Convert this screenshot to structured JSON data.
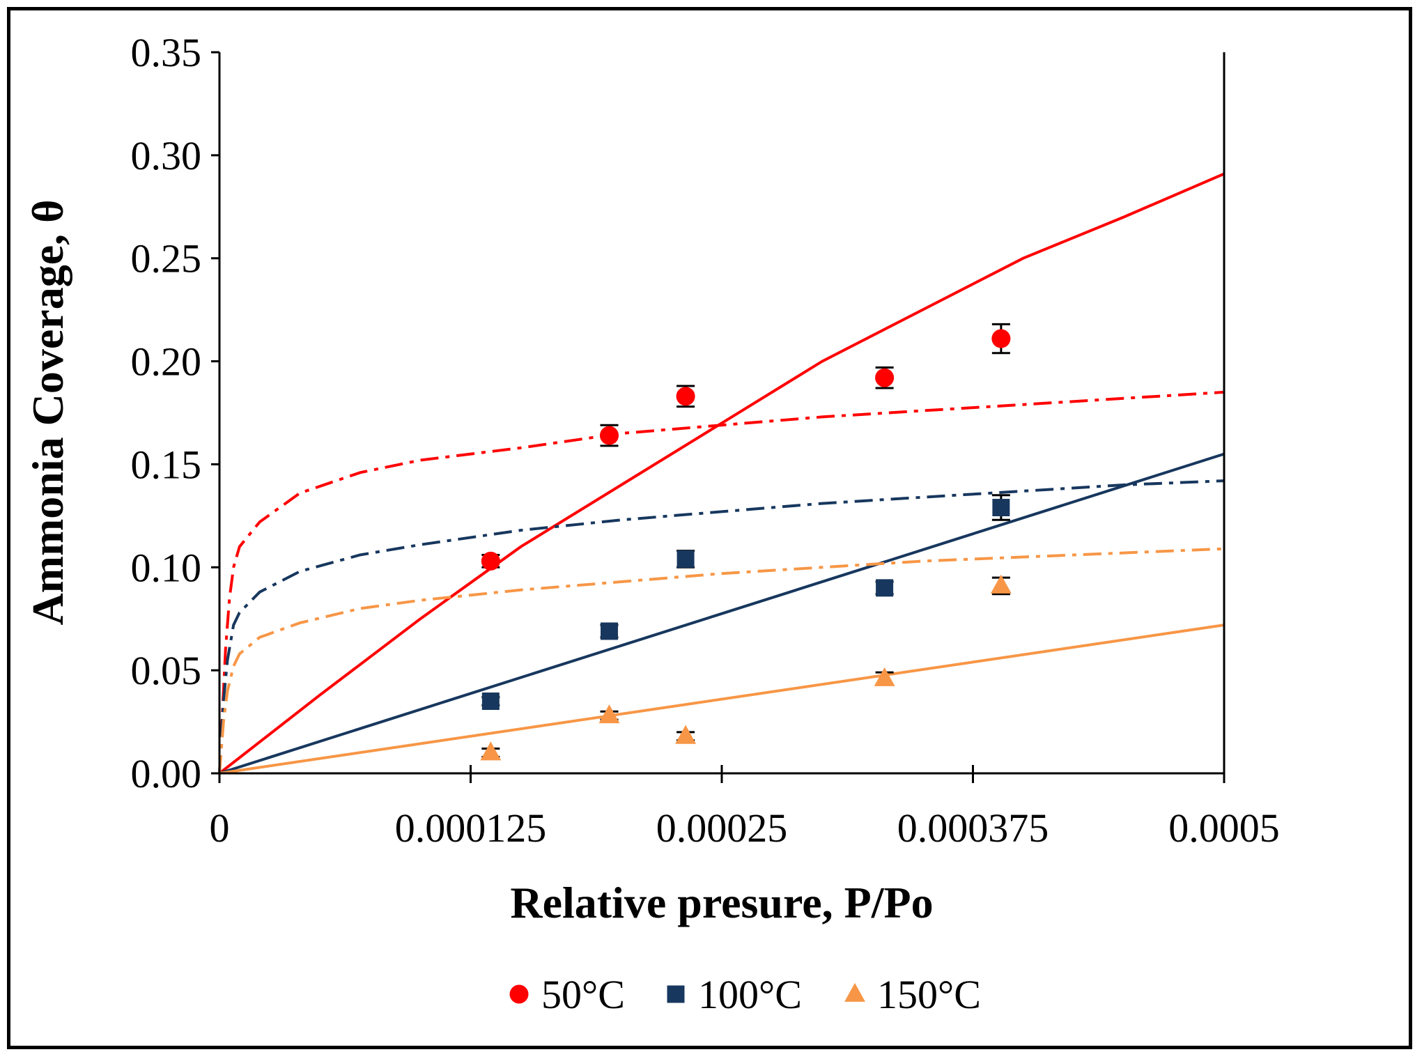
{
  "chart_data": {
    "type": "scatter",
    "xlabel": "Relative presure, P/Po",
    "ylabel": "Ammonia Coverage, θ",
    "xlim": [
      0,
      0.0005
    ],
    "ylim": [
      0,
      0.35
    ],
    "x_ticks": [
      0,
      0.000125,
      0.00025,
      0.000375,
      0.0005
    ],
    "x_tick_labels": [
      "0",
      "0.000125",
      "0.00025",
      "0.000375",
      "0.0005"
    ],
    "y_ticks": [
      0,
      0.05,
      0.1,
      0.15,
      0.2,
      0.25,
      0.3,
      0.35
    ],
    "y_tick_labels": [
      "0.00",
      "0.05",
      "0.10",
      "0.15",
      "0.20",
      "0.25",
      "0.30",
      "0.35"
    ],
    "grid": false,
    "legend_position": "bottom",
    "series": [
      {
        "name": "50°C",
        "marker": "circle",
        "color": "#ff0000",
        "points": [
          {
            "x": 0.000135,
            "y": 0.103,
            "err": 0.003
          },
          {
            "x": 0.000194,
            "y": 0.164,
            "err": 0.005
          },
          {
            "x": 0.000232,
            "y": 0.183,
            "err": 0.005
          },
          {
            "x": 0.000331,
            "y": 0.192,
            "err": 0.005
          },
          {
            "x": 0.000389,
            "y": 0.211,
            "err": 0.007
          }
        ],
        "fits": [
          {
            "style": "solid",
            "points": [
              [
                0,
                0
              ],
              [
                5e-05,
                0.038
              ],
              [
                0.0001,
                0.075
              ],
              [
                0.00015,
                0.11
              ],
              [
                0.0002,
                0.14
              ],
              [
                0.00025,
                0.17
              ],
              [
                0.0003,
                0.2
              ],
              [
                0.00035,
                0.225
              ],
              [
                0.0004,
                0.25
              ],
              [
                0.00045,
                0.27
              ],
              [
                0.0005,
                0.291
              ]
            ]
          },
          {
            "style": "dash-dot",
            "points": [
              [
                0,
                0
              ],
              [
                1e-06,
                0.02
              ],
              [
                3e-06,
                0.06
              ],
              [
                5e-06,
                0.085
              ],
              [
                7e-06,
                0.1
              ],
              [
                1e-05,
                0.11
              ],
              [
                2e-05,
                0.122
              ],
              [
                4e-05,
                0.136
              ],
              [
                7e-05,
                0.146
              ],
              [
                0.0001,
                0.152
              ],
              [
                0.00015,
                0.158
              ],
              [
                0.0002,
                0.165
              ],
              [
                0.00025,
                0.169
              ],
              [
                0.0003,
                0.173
              ],
              [
                0.00035,
                0.176
              ],
              [
                0.0004,
                0.179
              ],
              [
                0.00045,
                0.182
              ],
              [
                0.0005,
                0.185
              ]
            ]
          }
        ]
      },
      {
        "name": "100°C",
        "marker": "square",
        "color": "#17375e",
        "points": [
          {
            "x": 0.000135,
            "y": 0.035,
            "err": 0.002
          },
          {
            "x": 0.000194,
            "y": 0.069,
            "err": 0.003
          },
          {
            "x": 0.000232,
            "y": 0.104,
            "err": 0.004
          },
          {
            "x": 0.000331,
            "y": 0.09,
            "err": 0.003
          },
          {
            "x": 0.000389,
            "y": 0.129,
            "err": 0.006
          }
        ],
        "fits": [
          {
            "style": "solid",
            "points": [
              [
                0,
                0
              ],
              [
                0.0005,
                0.155
              ]
            ]
          },
          {
            "style": "dash-dot",
            "points": [
              [
                0,
                0
              ],
              [
                2e-06,
                0.035
              ],
              [
                4e-06,
                0.055
              ],
              [
                7e-06,
                0.072
              ],
              [
                1e-05,
                0.078
              ],
              [
                2e-05,
                0.088
              ],
              [
                4e-05,
                0.098
              ],
              [
                7e-05,
                0.106
              ],
              [
                0.0001,
                0.111
              ],
              [
                0.00015,
                0.118
              ],
              [
                0.0002,
                0.123
              ],
              [
                0.00025,
                0.127
              ],
              [
                0.0003,
                0.131
              ],
              [
                0.00035,
                0.134
              ],
              [
                0.0004,
                0.137
              ],
              [
                0.00045,
                0.14
              ],
              [
                0.0005,
                0.142
              ]
            ]
          }
        ]
      },
      {
        "name": "150°C",
        "marker": "triangle",
        "color": "#f79646",
        "points": [
          {
            "x": 0.000135,
            "y": 0.01,
            "err": 0.002
          },
          {
            "x": 0.000194,
            "y": 0.028,
            "err": 0.002
          },
          {
            "x": 0.000232,
            "y": 0.018,
            "err": 0.002
          },
          {
            "x": 0.000331,
            "y": 0.046,
            "err": 0.003
          },
          {
            "x": 0.000389,
            "y": 0.091,
            "err": 0.004
          }
        ],
        "fits": [
          {
            "style": "solid",
            "points": [
              [
                0,
                0
              ],
              [
                0.0005,
                0.072
              ]
            ]
          },
          {
            "style": "dash-dot",
            "points": [
              [
                0,
                0
              ],
              [
                2e-06,
                0.025
              ],
              [
                4e-06,
                0.04
              ],
              [
                7e-06,
                0.052
              ],
              [
                1e-05,
                0.058
              ],
              [
                2e-05,
                0.066
              ],
              [
                4e-05,
                0.073
              ],
              [
                7e-05,
                0.08
              ],
              [
                0.0001,
                0.084
              ],
              [
                0.00015,
                0.089
              ],
              [
                0.0002,
                0.093
              ],
              [
                0.00025,
                0.097
              ],
              [
                0.0003,
                0.1
              ],
              [
                0.00035,
                0.103
              ],
              [
                0.0004,
                0.105
              ],
              [
                0.00045,
                0.107
              ],
              [
                0.0005,
                0.109
              ]
            ]
          }
        ]
      }
    ]
  }
}
